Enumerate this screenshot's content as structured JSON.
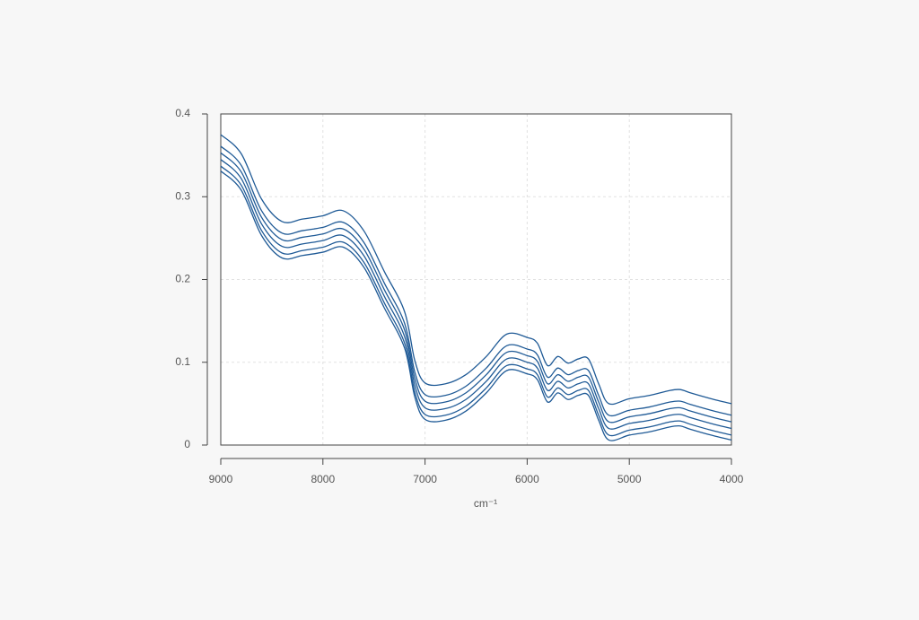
{
  "chart_data": {
    "type": "line",
    "x_label": "cm⁻¹",
    "x": [
      9000,
      8800,
      8600,
      8400,
      8200,
      8000,
      7800,
      7600,
      7400,
      7200,
      7100,
      7000,
      6800,
      6600,
      6400,
      6200,
      6000,
      5900,
      5800,
      5700,
      5600,
      5500,
      5400,
      5300,
      5200,
      5000,
      4800,
      4600,
      4500,
      4400,
      4200,
      4000
    ],
    "series": [
      {
        "color": "#1f5a96",
        "values": [
          0.375,
          0.352,
          0.297,
          0.27,
          0.273,
          0.277,
          0.283,
          0.259,
          0.21,
          0.161,
          0.102,
          0.075,
          0.074,
          0.085,
          0.107,
          0.134,
          0.13,
          0.123,
          0.096,
          0.107,
          0.099,
          0.104,
          0.104,
          0.074,
          0.05,
          0.056,
          0.06,
          0.066,
          0.067,
          0.063,
          0.056,
          0.05
        ]
      },
      {
        "color": "#1f5a96",
        "values": [
          0.361,
          0.338,
          0.283,
          0.256,
          0.259,
          0.263,
          0.269,
          0.245,
          0.196,
          0.147,
          0.088,
          0.061,
          0.06,
          0.071,
          0.093,
          0.12,
          0.116,
          0.109,
          0.082,
          0.093,
          0.085,
          0.09,
          0.09,
          0.06,
          0.036,
          0.042,
          0.046,
          0.052,
          0.053,
          0.049,
          0.042,
          0.036
        ]
      },
      {
        "color": "#1f5a96",
        "values": [
          0.353,
          0.33,
          0.275,
          0.248,
          0.251,
          0.255,
          0.261,
          0.237,
          0.188,
          0.139,
          0.08,
          0.053,
          0.052,
          0.063,
          0.085,
          0.112,
          0.108,
          0.101,
          0.074,
          0.085,
          0.077,
          0.082,
          0.082,
          0.052,
          0.028,
          0.034,
          0.038,
          0.044,
          0.045,
          0.041,
          0.034,
          0.028
        ]
      },
      {
        "color": "#1f5a96",
        "values": [
          0.345,
          0.322,
          0.267,
          0.24,
          0.243,
          0.247,
          0.253,
          0.229,
          0.18,
          0.131,
          0.072,
          0.045,
          0.044,
          0.055,
          0.077,
          0.104,
          0.1,
          0.093,
          0.066,
          0.077,
          0.069,
          0.074,
          0.074,
          0.044,
          0.02,
          0.026,
          0.03,
          0.036,
          0.037,
          0.033,
          0.026,
          0.02
        ]
      },
      {
        "color": "#1f5a96",
        "values": [
          0.337,
          0.314,
          0.259,
          0.232,
          0.235,
          0.239,
          0.245,
          0.221,
          0.172,
          0.123,
          0.064,
          0.037,
          0.036,
          0.047,
          0.069,
          0.096,
          0.092,
          0.085,
          0.058,
          0.069,
          0.061,
          0.066,
          0.066,
          0.036,
          0.012,
          0.018,
          0.022,
          0.028,
          0.029,
          0.025,
          0.018,
          0.012
        ]
      },
      {
        "color": "#1f5a96",
        "values": [
          0.331,
          0.308,
          0.253,
          0.226,
          0.229,
          0.233,
          0.239,
          0.215,
          0.166,
          0.117,
          0.058,
          0.031,
          0.03,
          0.041,
          0.063,
          0.09,
          0.086,
          0.079,
          0.052,
          0.063,
          0.055,
          0.06,
          0.06,
          0.03,
          0.006,
          0.012,
          0.016,
          0.022,
          0.023,
          0.019,
          0.012,
          0.006
        ]
      }
    ],
    "xlim": [
      9000,
      4000
    ],
    "xticks": [
      9000,
      8000,
      7000,
      6000,
      5000,
      4000
    ],
    "ylim": [
      0,
      0.4
    ],
    "yticks": [
      0,
      0.1,
      0.2,
      0.3,
      0.4
    ],
    "grid": true
  }
}
